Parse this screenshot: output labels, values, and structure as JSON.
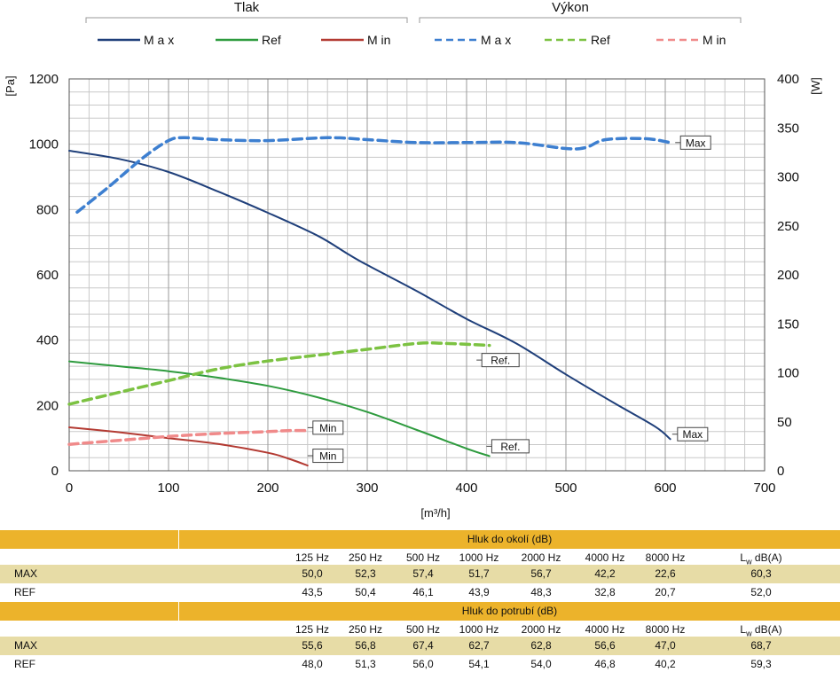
{
  "chart_data": {
    "type": "line",
    "group_headers": {
      "left": "Tlak",
      "right": "Výkon"
    },
    "legend": [
      {
        "label": "M a x",
        "color": "#1f3f7a",
        "dash": "solid"
      },
      {
        "label": "Ref",
        "color": "#2e9b3e",
        "dash": "solid"
      },
      {
        "label": "M in",
        "color": "#b33a32",
        "dash": "solid"
      },
      {
        "label": "M a x",
        "color": "#3d7fd0",
        "dash": "dashed"
      },
      {
        "label": "Ref",
        "color": "#7cc242",
        "dash": "dashed"
      },
      {
        "label": "M in",
        "color": "#f08a8a",
        "dash": "dashed"
      }
    ],
    "xlabel": "[m³/h]",
    "ylabel_left": "[Pa]",
    "ylabel_right": "[W]",
    "xlim": [
      0,
      700
    ],
    "ylim_left": [
      0,
      1200
    ],
    "ylim_right": [
      0,
      400
    ],
    "x_ticks": [
      0,
      100,
      200,
      300,
      400,
      500,
      600,
      700
    ],
    "y_left_ticks": [
      0,
      200,
      400,
      600,
      800,
      1000,
      1200
    ],
    "y_right_ticks": [
      0,
      50,
      100,
      150,
      200,
      250,
      300,
      350,
      400
    ],
    "grid": true,
    "series": [
      {
        "label": "Max",
        "axis": "left",
        "color": "#1f3f7a",
        "dash": "solid",
        "points": [
          [
            0,
            980
          ],
          [
            50,
            955
          ],
          [
            100,
            915
          ],
          [
            150,
            855
          ],
          [
            200,
            790
          ],
          [
            250,
            720
          ],
          [
            280,
            665
          ],
          [
            300,
            630
          ],
          [
            350,
            550
          ],
          [
            400,
            465
          ],
          [
            450,
            390
          ],
          [
            500,
            295
          ],
          [
            550,
            205
          ],
          [
            590,
            135
          ],
          [
            605,
            97
          ]
        ]
      },
      {
        "label": "Ref",
        "axis": "left",
        "color": "#2e9b3e",
        "dash": "solid",
        "points": [
          [
            0,
            335
          ],
          [
            50,
            320
          ],
          [
            100,
            305
          ],
          [
            150,
            285
          ],
          [
            200,
            260
          ],
          [
            250,
            225
          ],
          [
            300,
            180
          ],
          [
            350,
            125
          ],
          [
            400,
            68
          ],
          [
            423,
            45
          ]
        ]
      },
      {
        "label": "Min",
        "axis": "left",
        "color": "#b33a32",
        "dash": "solid",
        "points": [
          [
            0,
            133
          ],
          [
            50,
            118
          ],
          [
            100,
            100
          ],
          [
            150,
            82
          ],
          [
            200,
            55
          ],
          [
            220,
            38
          ],
          [
            240,
            16
          ]
        ]
      },
      {
        "label": "Max",
        "axis": "right",
        "color": "#3d7fd0",
        "dash": "dashed",
        "points": [
          [
            8,
            264
          ],
          [
            40,
            290
          ],
          [
            75,
            320
          ],
          [
            100,
            337
          ],
          [
            115,
            340
          ],
          [
            150,
            338
          ],
          [
            200,
            337
          ],
          [
            260,
            340
          ],
          [
            300,
            338
          ],
          [
            350,
            335
          ],
          [
            400,
            335
          ],
          [
            450,
            335
          ],
          [
            500,
            329
          ],
          [
            520,
            330
          ],
          [
            540,
            338
          ],
          [
            580,
            339
          ],
          [
            605,
            335
          ]
        ]
      },
      {
        "label": "Ref",
        "axis": "right",
        "color": "#7cc242",
        "dash": "dashed",
        "points": [
          [
            0,
            68
          ],
          [
            50,
            80
          ],
          [
            100,
            92
          ],
          [
            150,
            104
          ],
          [
            200,
            112
          ],
          [
            250,
            118
          ],
          [
            300,
            124
          ],
          [
            350,
            130
          ],
          [
            380,
            130
          ],
          [
            423,
            128
          ]
        ]
      },
      {
        "label": "Min",
        "axis": "right",
        "color": "#f08a8a",
        "dash": "dashed",
        "points": [
          [
            0,
            27
          ],
          [
            50,
            31
          ],
          [
            100,
            35
          ],
          [
            150,
            38
          ],
          [
            200,
            40
          ],
          [
            220,
            41
          ],
          [
            240,
            41
          ]
        ]
      }
    ],
    "annotations": [
      {
        "text": "Max",
        "x": 610,
        "y_right": 335
      },
      {
        "text": "Ref.",
        "x": 410,
        "y_right": 113
      },
      {
        "text": "Min",
        "x": 240,
        "y_right": 44
      },
      {
        "text": "Min",
        "x": 240,
        "y_left": 46
      },
      {
        "text": "Ref.",
        "x": 420,
        "y_left": 75
      },
      {
        "text": "Max",
        "x": 607,
        "y_left": 112
      }
    ]
  },
  "tables": [
    {
      "title": "Hluk do okolí (dB)",
      "headers": [
        "125 Hz",
        "250 Hz",
        "500 Hz",
        "1000 Hz",
        "2000 Hz",
        "4000 Hz",
        "8000 Hz"
      ],
      "lw_header": {
        "prefix": "L",
        "sub": "w",
        "suffix": " dB(A)"
      },
      "rows": [
        {
          "label": "MAX",
          "values": [
            "50,0",
            "52,3",
            "57,4",
            "51,7",
            "56,7",
            "42,2",
            "22,6",
            "60,3"
          ]
        },
        {
          "label": "REF",
          "values": [
            "43,5",
            "50,4",
            "46,1",
            "43,9",
            "48,3",
            "32,8",
            "20,7",
            "52,0"
          ]
        }
      ]
    },
    {
      "title": "Hluk do potrubí (dB)",
      "headers": [
        "125 Hz",
        "250 Hz",
        "500 Hz",
        "1000 Hz",
        "2000 Hz",
        "4000 Hz",
        "8000 Hz"
      ],
      "lw_header": {
        "prefix": "L",
        "sub": "w",
        "suffix": " dB(A)"
      },
      "rows": [
        {
          "label": "MAX",
          "values": [
            "55,6",
            "56,8",
            "67,4",
            "62,7",
            "62,8",
            "56,6",
            "47,0",
            "68,7"
          ]
        },
        {
          "label": "REF",
          "values": [
            "48,0",
            "51,3",
            "56,0",
            "54,1",
            "54,0",
            "46,8",
            "40,2",
            "59,3"
          ]
        }
      ]
    }
  ]
}
